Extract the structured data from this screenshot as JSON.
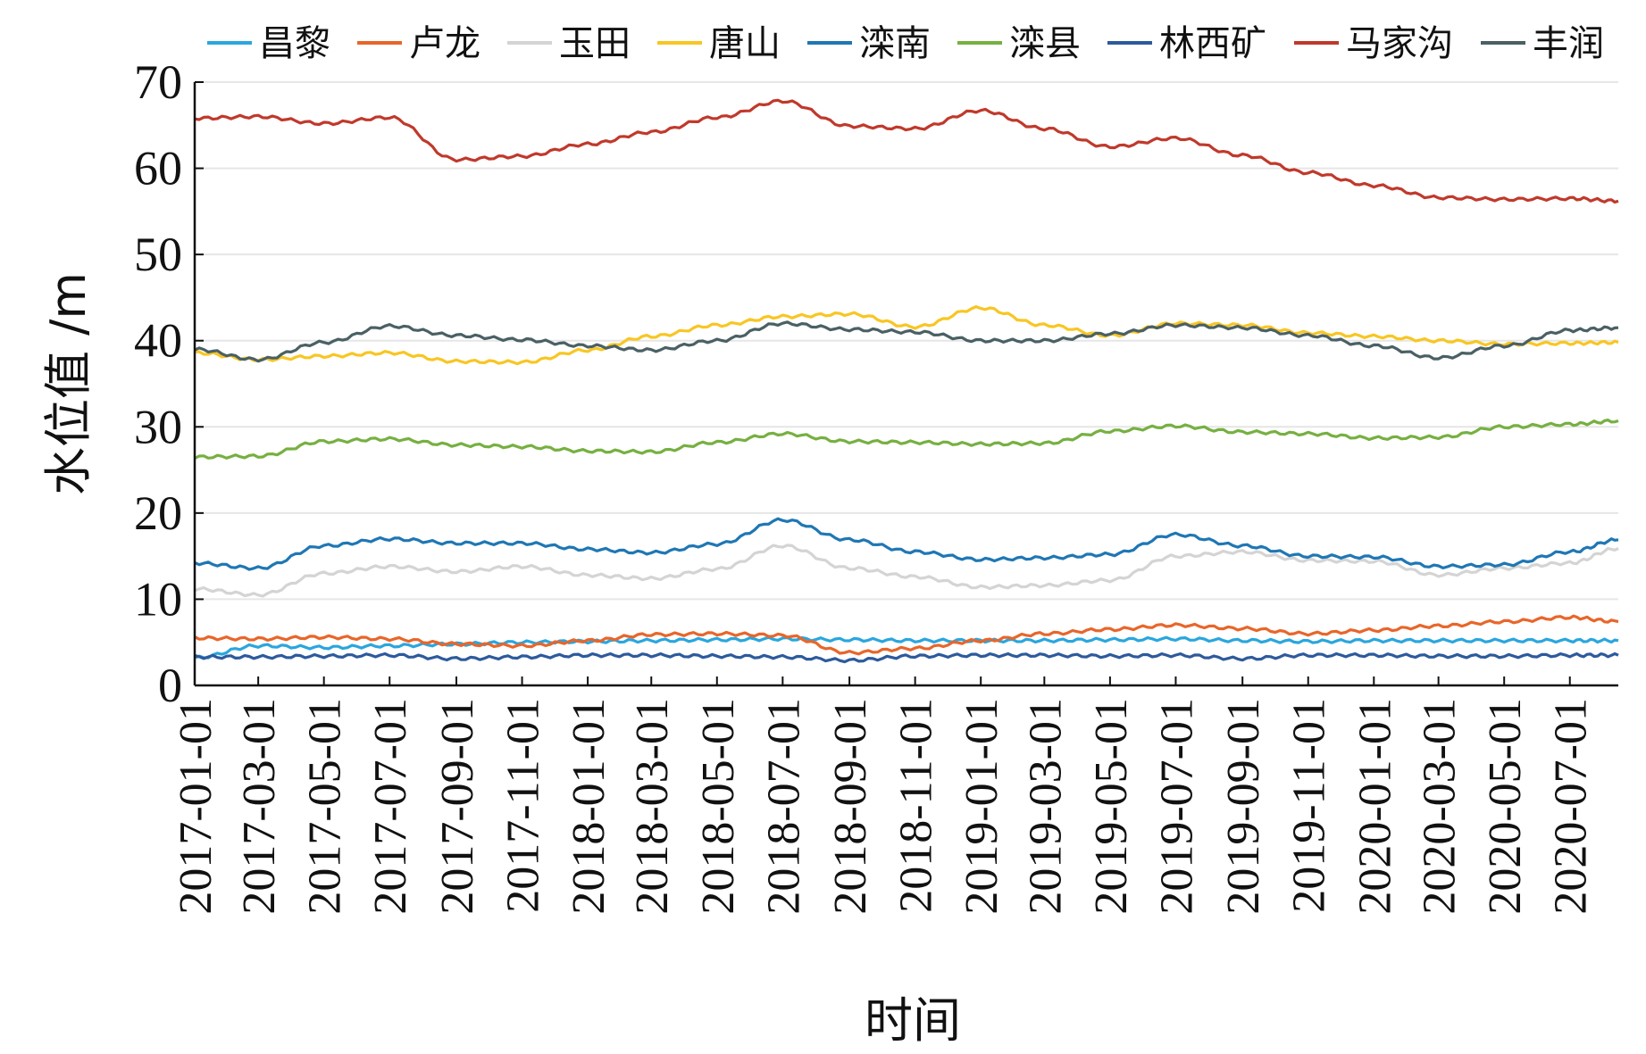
{
  "chart_data": {
    "type": "line",
    "title": "",
    "xlabel": "时间",
    "ylabel": "水位值 /m",
    "ylim": [
      0,
      70
    ],
    "yticks": [
      0,
      10,
      20,
      30,
      40,
      50,
      60,
      70
    ],
    "xlim": [
      "2017-01-01",
      "2020-08-15"
    ],
    "xticks": [
      "2017-01-01",
      "2017-03-01",
      "2017-05-01",
      "2017-07-01",
      "2017-09-01",
      "2017-11-01",
      "2018-01-01",
      "2018-03-01",
      "2018-05-01",
      "2018-07-01",
      "2018-09-01",
      "2018-11-01",
      "2019-01-01",
      "2019-03-01",
      "2019-05-01",
      "2019-07-01",
      "2019-09-01",
      "2019-11-01",
      "2020-01-01",
      "2020-03-01",
      "2020-05-01",
      "2020-07-01"
    ],
    "grid": "horizontal",
    "legend": "top",
    "x": [
      "2017-01-01",
      "2017-03-01",
      "2017-05-01",
      "2017-07-01",
      "2017-09-01",
      "2017-11-01",
      "2018-01-01",
      "2018-03-01",
      "2018-05-01",
      "2018-07-01",
      "2018-09-01",
      "2018-11-01",
      "2019-01-01",
      "2019-03-01",
      "2019-05-01",
      "2019-07-01",
      "2019-09-01",
      "2019-11-01",
      "2020-01-01",
      "2020-03-01",
      "2020-05-01",
      "2020-07-01",
      "2020-08-15"
    ],
    "series": [
      {
        "name": "昌黎",
        "color": "#2aa6dd",
        "values": [
          3.2,
          4.6,
          4.4,
          4.6,
          4.8,
          5.0,
          5.1,
          5.2,
          5.3,
          5.4,
          5.3,
          5.2,
          5.2,
          5.2,
          5.3,
          5.4,
          5.2,
          5.1,
          5.2,
          5.2,
          5.2,
          5.2,
          5.2
        ]
      },
      {
        "name": "卢龙",
        "color": "#e8662a",
        "values": [
          5.5,
          5.4,
          5.6,
          5.4,
          4.8,
          4.6,
          5.2,
          5.9,
          6.0,
          5.8,
          3.8,
          4.3,
          5.2,
          6.0,
          6.5,
          7.0,
          6.6,
          6.0,
          6.4,
          6.9,
          7.4,
          7.9,
          7.4
        ]
      },
      {
        "name": "玉田",
        "color": "#d4d4d4",
        "values": [
          11.2,
          10.5,
          13.0,
          13.8,
          13.2,
          13.8,
          12.8,
          12.4,
          13.5,
          16.2,
          13.6,
          12.6,
          11.4,
          11.6,
          12.2,
          15.0,
          15.5,
          14.5,
          14.4,
          12.8,
          13.6,
          14.2,
          15.9
        ]
      },
      {
        "name": "唐山",
        "color": "#f8c623",
        "values": [
          38.6,
          37.8,
          38.2,
          38.6,
          37.6,
          37.5,
          38.9,
          40.5,
          41.8,
          42.8,
          43.1,
          41.6,
          43.8,
          41.8,
          40.6,
          42.0,
          41.8,
          40.9,
          40.5,
          40.0,
          39.6,
          39.7,
          39.8
        ]
      },
      {
        "name": "滦南",
        "color": "#1f77b4",
        "values": [
          14.2,
          13.6,
          16.2,
          17.0,
          16.5,
          16.5,
          15.8,
          15.4,
          16.4,
          19.2,
          16.9,
          15.5,
          14.6,
          14.8,
          15.2,
          17.5,
          16.2,
          15.0,
          14.9,
          13.8,
          14.0,
          15.5,
          16.9
        ]
      },
      {
        "name": "滦县",
        "color": "#76b041",
        "values": [
          26.5,
          26.6,
          28.3,
          28.6,
          27.9,
          27.7,
          27.2,
          27.1,
          28.2,
          29.2,
          28.3,
          28.2,
          28.0,
          28.1,
          29.5,
          30.1,
          29.4,
          29.2,
          28.7,
          28.8,
          30.0,
          30.3,
          30.7
        ]
      },
      {
        "name": "林西矿",
        "color": "#2d5a9c",
        "values": [
          3.3,
          3.3,
          3.4,
          3.5,
          3.1,
          3.3,
          3.5,
          3.5,
          3.4,
          3.3,
          2.9,
          3.4,
          3.5,
          3.5,
          3.4,
          3.5,
          3.1,
          3.5,
          3.5,
          3.4,
          3.4,
          3.5,
          3.5
        ]
      },
      {
        "name": "马家沟",
        "color": "#c0392b",
        "values": [
          65.8,
          66.0,
          65.2,
          65.9,
          61.0,
          61.4,
          62.8,
          64.2,
          65.9,
          67.8,
          64.9,
          64.6,
          66.7,
          64.6,
          62.5,
          63.5,
          61.5,
          59.5,
          58.0,
          56.6,
          56.4,
          56.5,
          56.2
        ]
      },
      {
        "name": "丰润",
        "color": "#4a6064",
        "values": [
          39.0,
          37.8,
          39.8,
          41.7,
          40.6,
          40.1,
          39.4,
          38.9,
          40.0,
          42.0,
          41.3,
          41.0,
          40.0,
          40.0,
          40.8,
          41.8,
          41.5,
          40.6,
          39.4,
          38.0,
          39.4,
          41.2,
          41.5
        ]
      }
    ]
  }
}
